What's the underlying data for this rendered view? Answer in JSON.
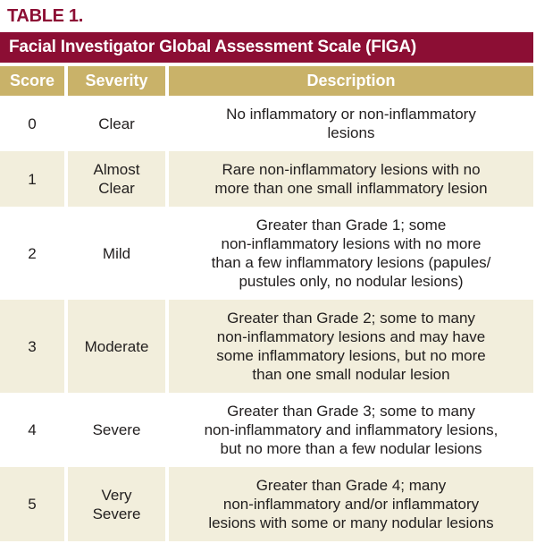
{
  "figure": {
    "label": "TABLE 1."
  },
  "table": {
    "title": "Facial Investigator Global Assessment Scale (FIGA)",
    "columns": [
      "Score",
      "Severity",
      "Description"
    ],
    "rows": [
      {
        "score": "0",
        "severity": "Clear",
        "description": "No inflammatory or non-inflammatory\nlesions"
      },
      {
        "score": "1",
        "severity": "Almost\nClear",
        "description": "Rare non-inflammatory lesions with no\nmore than one small inflammatory lesion"
      },
      {
        "score": "2",
        "severity": "Mild",
        "description": "Greater than Grade 1; some\nnon-inflammatory lesions with no more\nthan a few inflammatory lesions (papules/\npustules only, no nodular lesions)"
      },
      {
        "score": "3",
        "severity": "Moderate",
        "description": "Greater than Grade 2; some to many\nnon-inflammatory lesions and may have\nsome inflammatory lesions, but no more\nthan one small nodular lesion"
      },
      {
        "score": "4",
        "severity": "Severe",
        "description": "Greater than Grade 3; some to many\nnon-inflammatory and inflammatory lesions,\nbut no more than a few nodular lesions"
      },
      {
        "score": "5",
        "severity": "Very\nSevere",
        "description": "Greater than Grade 4; many\nnon-inflammatory and/or inflammatory\nlesions with some or many nodular lesions"
      }
    ]
  },
  "colors": {
    "maroon": "#8C0E34",
    "gold": "#C9B269",
    "beige": "#F2EEDC",
    "text": "#232020",
    "header_text": "#FFFFFF"
  }
}
